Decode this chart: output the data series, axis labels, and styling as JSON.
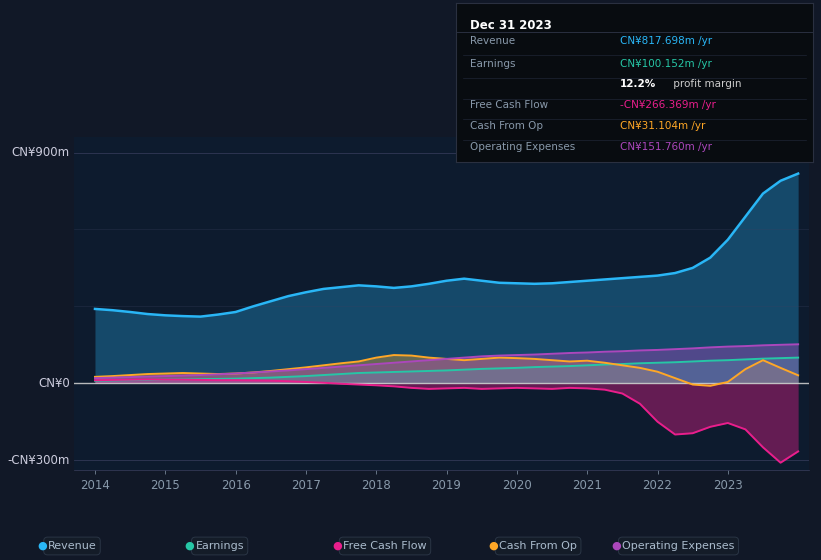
{
  "background_color": "#111827",
  "plot_bg_color": "#0d1b2e",
  "dark_bg": "#0a0e1a",
  "series_colors": {
    "revenue": "#29b6f6",
    "earnings": "#26c6a6",
    "free_cash_flow": "#e91e8c",
    "cash_from_op": "#ffa726",
    "operating_expenses": "#ab47bc"
  },
  "y_label_top": "CN¥900m",
  "y_label_zero": "CN¥0",
  "y_label_bot": "-CN¥300m",
  "x_ticks": [
    2014,
    2015,
    2016,
    2017,
    2018,
    2019,
    2020,
    2021,
    2022,
    2023
  ],
  "ylim_low": -340,
  "ylim_high": 960,
  "y_top": 900,
  "y_bot": -300,
  "infobox_title": "Dec 31 2023",
  "infobox_rows": [
    {
      "label": "Revenue",
      "value": "CN¥817.698m /yr",
      "color": "#29b6f6"
    },
    {
      "label": "Earnings",
      "value": "CN¥100.152m /yr",
      "color": "#26c6a6"
    },
    {
      "label": "",
      "value": "12.2%",
      "color": "#ffffff",
      "suffix": " profit margin"
    },
    {
      "label": "Free Cash Flow",
      "value": "-CN¥266.369m /yr",
      "color": "#e91e8c"
    },
    {
      "label": "Cash From Op",
      "value": "CN¥31.104m /yr",
      "color": "#ffa726"
    },
    {
      "label": "Operating Expenses",
      "value": "CN¥151.760m /yr",
      "color": "#ab47bc"
    }
  ],
  "legend_items": [
    {
      "label": "Revenue",
      "color": "#29b6f6"
    },
    {
      "label": "Earnings",
      "color": "#26c6a6"
    },
    {
      "label": "Free Cash Flow",
      "color": "#e91e8c"
    },
    {
      "label": "Cash From Op",
      "color": "#ffa726"
    },
    {
      "label": "Operating Expenses",
      "color": "#ab47bc"
    }
  ]
}
